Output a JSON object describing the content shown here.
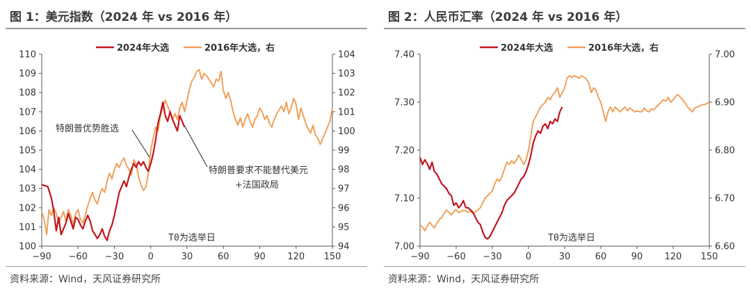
{
  "colors": {
    "series_2024": "#C0161E",
    "series_2016": "#F0A05A",
    "axis": "#555555"
  },
  "panels": [
    {
      "title": "图 1：美元指数（2024 年  vs 2016 年）",
      "source": "资料来源：Wind，天风证券研究所",
      "chart_data": {
        "type": "line",
        "title": "图 1：美元指数（2024 年  vs 2016 年）",
        "x_ticks": [
          -90,
          -60,
          -30,
          0,
          30,
          60,
          90,
          120,
          150
        ],
        "xlim": [
          -90,
          150
        ],
        "left_axis": {
          "ticks": [
            "110",
            "109",
            "108",
            "107",
            "106",
            "105",
            "104",
            "103",
            "102",
            "101",
            "100"
          ],
          "ylim": [
            100,
            110
          ]
        },
        "right_axis": {
          "ticks": [
            "104",
            "103",
            "102",
            "101",
            "100",
            "99",
            "98",
            "97",
            "96",
            "95",
            "94"
          ],
          "ylim": [
            94,
            104
          ]
        },
        "legend": [
          "2024年大选",
          "2016年大选，右"
        ],
        "annotations": [
          "特朗普优势胜选",
          "特朗普要求不能替代美元",
          "+法国政局",
          "T0为选举日"
        ],
        "series": [
          {
            "name": "2024年大选",
            "axis": "left",
            "x": [
              -90,
              -85,
              -82,
              -80,
              -78,
              -76,
              -74,
              -72,
              -70,
              -68,
              -66,
              -64,
              -62,
              -60,
              -58,
              -56,
              -54,
              -52,
              -50,
              -48,
              -46,
              -44,
              -42,
              -40,
              -38,
              -36,
              -34,
              -32,
              -30,
              -28,
              -26,
              -24,
              -22,
              -20,
              -18,
              -16,
              -14,
              -12,
              -10,
              -8,
              -6,
              -4,
              -2,
              0,
              2,
              4,
              6,
              8,
              10,
              12,
              14,
              16,
              18,
              20,
              22,
              24,
              26,
              28
            ],
            "y": [
              103.2,
              103.1,
              102.5,
              101.8,
              100.8,
              101.5,
              100.6,
              100.9,
              101.2,
              101.7,
              101.3,
              100.9,
              101.5,
              101.4,
              101.1,
              100.9,
              101.3,
              101.6,
              101.3,
              100.8,
              100.6,
              100.4,
              100.6,
              100.9,
              100.5,
              100.3,
              100.8,
              101.1,
              101.6,
              102.2,
              102.8,
              103.1,
              103.4,
              103.1,
              103.6,
              104.0,
              104.3,
              104.1,
              104.4,
              104.2,
              104.4,
              104.1,
              103.9,
              104.3,
              104.8,
              105.5,
              106.4,
              106.9,
              107.5,
              106.8,
              106.5,
              107.0,
              106.6,
              106.3,
              106.0,
              106.8,
              106.5,
              106.2
            ]
          },
          {
            "name": "2016年大选，右",
            "axis": "right",
            "x": [
              -90,
              -88,
              -86,
              -84,
              -82,
              -80,
              -78,
              -76,
              -74,
              -72,
              -70,
              -68,
              -66,
              -64,
              -62,
              -60,
              -58,
              -56,
              -54,
              -52,
              -50,
              -48,
              -46,
              -44,
              -42,
              -40,
              -38,
              -36,
              -34,
              -32,
              -30,
              -28,
              -26,
              -24,
              -22,
              -20,
              -18,
              -16,
              -14,
              -12,
              -10,
              -8,
              -6,
              -4,
              -2,
              0,
              2,
              4,
              6,
              8,
              10,
              12,
              14,
              16,
              18,
              20,
              22,
              24,
              26,
              28,
              30,
              32,
              34,
              36,
              38,
              40,
              42,
              44,
              46,
              48,
              50,
              52,
              54,
              56,
              58,
              60,
              62,
              64,
              66,
              68,
              70,
              72,
              74,
              76,
              78,
              80,
              82,
              84,
              86,
              88,
              90,
              92,
              94,
              96,
              98,
              100,
              102,
              104,
              106,
              108,
              110,
              112,
              114,
              116,
              118,
              120,
              122,
              124,
              126,
              128,
              130,
              132,
              134,
              136,
              138,
              140,
              142,
              144,
              146,
              148,
              150
            ],
            "y": [
              95.8,
              95.4,
              94.6,
              95.9,
              95.6,
              96.0,
              95.7,
              95.2,
              95.5,
              95.8,
              95.3,
              95.9,
              95.6,
              95.1,
              95.7,
              95.9,
              95.4,
              95.2,
              95.6,
              96.1,
              96.5,
              96.8,
              96.4,
              96.2,
              96.7,
              97.0,
              96.8,
              97.4,
              97.8,
              97.5,
              98.0,
              98.3,
              98.1,
              98.4,
              98.6,
              98.2,
              98.0,
              97.7,
              98.5,
              98.3,
              97.6,
              97.2,
              96.9,
              97.1,
              97.8,
              99.0,
              99.6,
              100.2,
              100.0,
              100.8,
              101.2,
              101.6,
              101.3,
              101.0,
              100.6,
              100.9,
              100.6,
              101.2,
              101.5,
              101.0,
              101.6,
              102.2,
              102.6,
              102.8,
              103.1,
              103.2,
              102.7,
              103.0,
              102.9,
              102.7,
              102.5,
              102.3,
              102.7,
              102.6,
              103.1,
              102.1,
              101.7,
              102.0,
              101.6,
              101.0,
              100.6,
              100.3,
              100.7,
              100.2,
              100.6,
              100.9,
              100.5,
              100.2,
              100.6,
              100.8,
              101.2,
              101.0,
              100.6,
              100.8,
              100.4,
              100.2,
              100.6,
              100.9,
              101.1,
              101.3,
              101.0,
              101.5,
              100.9,
              101.2,
              101.7,
              101.4,
              100.6,
              101.2,
              100.8,
              100.4,
              100.1,
              99.9,
              100.3,
              99.8,
              99.6,
              99.3,
              99.6,
              99.9,
              100.2,
              100.5,
              101.2
            ]
          }
        ]
      }
    },
    {
      "title": "图 2：人民币汇率（2024 年  vs 2016 年）",
      "source": "资料来源：Wind，天风证券研究所",
      "chart_data": {
        "type": "line",
        "title": "图 2：人民币汇率（2024 年  vs 2016 年）",
        "x_ticks": [
          -90,
          -60,
          -30,
          0,
          30,
          60,
          90,
          120,
          150
        ],
        "xlim": [
          -90,
          150
        ],
        "left_axis": {
          "ticks": [
            "7.40",
            "7.30",
            "7.20",
            "7.10",
            "7.00"
          ],
          "ylim": [
            7.0,
            7.4
          ]
        },
        "right_axis": {
          "ticks": [
            "7.00",
            "6.90",
            "6.80",
            "6.70",
            "6.60"
          ],
          "ylim": [
            6.6,
            7.0
          ]
        },
        "legend": [
          "2024年大选",
          "2016年大选，右"
        ],
        "annotations": [
          "T0为选举日"
        ],
        "series": [
          {
            "name": "2024年大选",
            "axis": "left",
            "x": [
              -90,
              -88,
              -86,
              -84,
              -82,
              -80,
              -78,
              -76,
              -74,
              -72,
              -70,
              -68,
              -66,
              -64,
              -62,
              -60,
              -58,
              -56,
              -54,
              -52,
              -50,
              -48,
              -46,
              -44,
              -42,
              -40,
              -38,
              -36,
              -34,
              -32,
              -30,
              -28,
              -26,
              -24,
              -22,
              -20,
              -18,
              -16,
              -14,
              -12,
              -10,
              -8,
              -6,
              -4,
              -2,
              0,
              2,
              4,
              6,
              8,
              10,
              12,
              14,
              16,
              18,
              20,
              22,
              24,
              26,
              28
            ],
            "y": [
              7.185,
              7.17,
              7.18,
              7.172,
              7.16,
              7.175,
              7.155,
              7.15,
              7.14,
              7.13,
              7.125,
              7.12,
              7.11,
              7.105,
              7.085,
              7.09,
              7.08,
              7.085,
              7.095,
              7.08,
              7.08,
              7.075,
              7.07,
              7.06,
              7.05,
              7.045,
              7.03,
              7.018,
              7.015,
              7.02,
              7.03,
              7.04,
              7.05,
              7.06,
              7.07,
              7.085,
              7.095,
              7.1,
              7.105,
              7.11,
              7.12,
              7.13,
              7.14,
              7.145,
              7.155,
              7.17,
              7.19,
              7.215,
              7.23,
              7.24,
              7.235,
              7.25,
              7.255,
              7.245,
              7.26,
              7.255,
              7.265,
              7.26,
              7.28,
              7.29
            ]
          },
          {
            "name": "2016年大选，右",
            "axis": "right",
            "x": [
              -90,
              -88,
              -86,
              -84,
              -82,
              -80,
              -78,
              -76,
              -74,
              -72,
              -70,
              -68,
              -66,
              -64,
              -62,
              -60,
              -58,
              -56,
              -54,
              -52,
              -50,
              -48,
              -46,
              -44,
              -42,
              -40,
              -38,
              -36,
              -34,
              -32,
              -30,
              -28,
              -26,
              -24,
              -22,
              -20,
              -18,
              -16,
              -14,
              -12,
              -10,
              -8,
              -6,
              -4,
              -2,
              0,
              2,
              4,
              6,
              8,
              10,
              12,
              14,
              16,
              18,
              20,
              22,
              24,
              26,
              28,
              30,
              32,
              34,
              36,
              38,
              40,
              42,
              44,
              46,
              48,
              50,
              52,
              54,
              56,
              58,
              60,
              62,
              64,
              66,
              68,
              70,
              72,
              74,
              76,
              78,
              80,
              82,
              84,
              86,
              88,
              90,
              92,
              94,
              96,
              98,
              100,
              102,
              104,
              106,
              108,
              110,
              112,
              114,
              116,
              118,
              120,
              122,
              124,
              126,
              128,
              130,
              132,
              134,
              136,
              138,
              140,
              142,
              144,
              146,
              148,
              150
            ],
            "y": [
              6.645,
              6.64,
              6.632,
              6.642,
              6.65,
              6.643,
              6.638,
              6.648,
              6.655,
              6.66,
              6.668,
              6.675,
              6.67,
              6.665,
              6.672,
              6.676,
              6.67,
              6.672,
              6.675,
              6.673,
              6.671,
              6.672,
              6.668,
              6.672,
              6.675,
              6.68,
              6.69,
              6.7,
              6.705,
              6.71,
              6.715,
              6.73,
              6.74,
              6.735,
              6.745,
              6.76,
              6.775,
              6.77,
              6.778,
              6.772,
              6.78,
              6.79,
              6.78,
              6.77,
              6.78,
              6.8,
              6.83,
              6.86,
              6.87,
              6.88,
              6.89,
              6.895,
              6.9,
              6.91,
              6.905,
              6.915,
              6.92,
              6.93,
              6.91,
              6.92,
              6.93,
              6.95,
              6.955,
              6.952,
              6.955,
              6.953,
              6.95,
              6.955,
              6.952,
              6.948,
              6.94,
              6.92,
              6.93,
              6.925,
              6.91,
              6.9,
              6.88,
              6.86,
              6.88,
              6.89,
              6.88,
              6.89,
              6.885,
              6.88,
              6.885,
              6.89,
              6.882,
              6.888,
              6.884,
              6.88,
              6.882,
              6.88,
              6.88,
              6.888,
              6.882,
              6.88,
              6.886,
              6.884,
              6.89,
              6.895,
              6.9,
              6.905,
              6.902,
              6.91,
              6.9,
              6.905,
              6.912,
              6.916,
              6.91,
              6.905,
              6.898,
              6.89,
              6.885,
              6.88,
              6.888,
              6.89,
              6.892,
              6.895,
              6.895,
              6.897,
              6.9
            ]
          }
        ]
      }
    }
  ]
}
